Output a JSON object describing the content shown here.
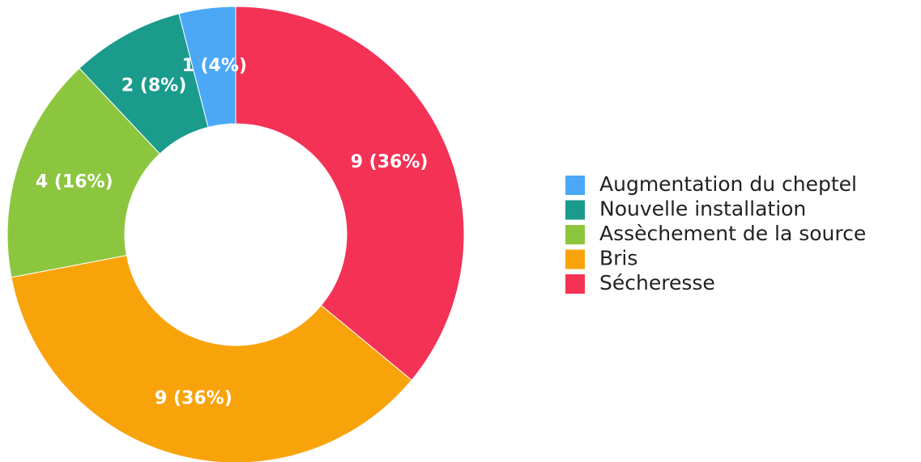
{
  "chart_data": {
    "type": "pie",
    "categories": [
      "Augmentation du cheptel",
      "Nouvelle installation",
      "Assèchement de la source",
      "Bris",
      "Sécheresse"
    ],
    "values": [
      1,
      2,
      4,
      9,
      9
    ],
    "value_labels": [
      "1 (4%)",
      "2 (8%)",
      "4 (16%)",
      "9 (36%)",
      "9 (36%)"
    ],
    "colors": [
      "#4aa8f7",
      "#1a9b8c",
      "#8cc63f",
      "#f9a30b",
      "#f43255"
    ],
    "hole": true,
    "direction": "counterclockwise",
    "legend": "right"
  }
}
